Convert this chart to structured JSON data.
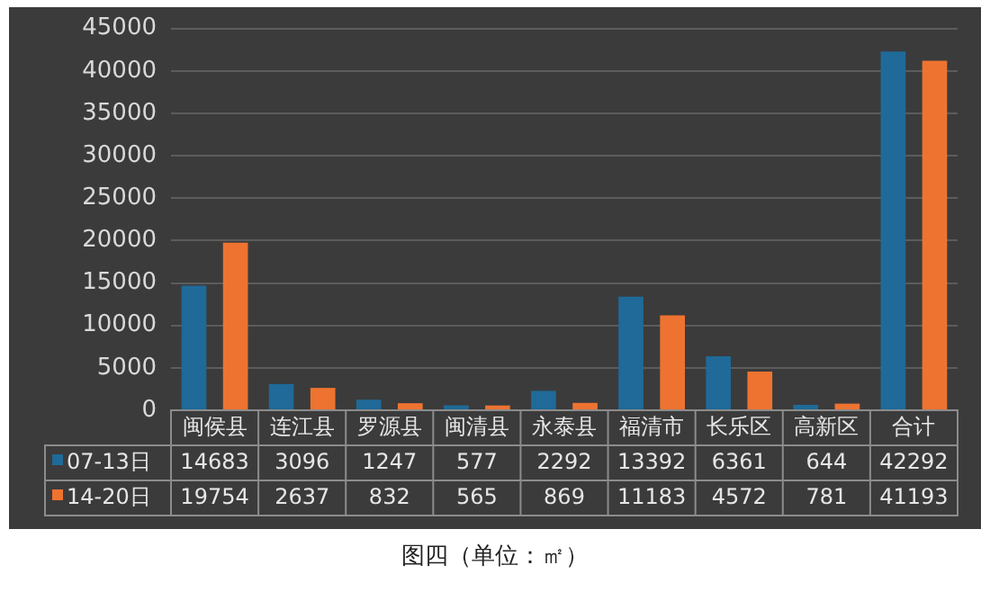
{
  "chart_data": {
    "type": "bar",
    "categories": [
      "闽侯县",
      "连江县",
      "罗源县",
      "闽清县",
      "永泰县",
      "福清市",
      "长乐区",
      "高新区",
      "合计"
    ],
    "series": [
      {
        "name": "07-13日",
        "color": "#1f6a98",
        "values": [
          14683,
          3096,
          1247,
          577,
          2292,
          13392,
          6361,
          644,
          42292
        ]
      },
      {
        "name": "14-20日",
        "color": "#ee7330",
        "values": [
          19754,
          2637,
          832,
          565,
          869,
          11183,
          4572,
          781,
          41193
        ]
      }
    ],
    "ylim": [
      0,
      45000
    ],
    "yticks": [
      0,
      5000,
      10000,
      15000,
      20000,
      25000,
      30000,
      35000,
      40000,
      45000
    ],
    "grid": "y",
    "legend": "bottom left",
    "data_labels": true,
    "annotations": [
      "图四（单位：㎡）"
    ]
  }
}
